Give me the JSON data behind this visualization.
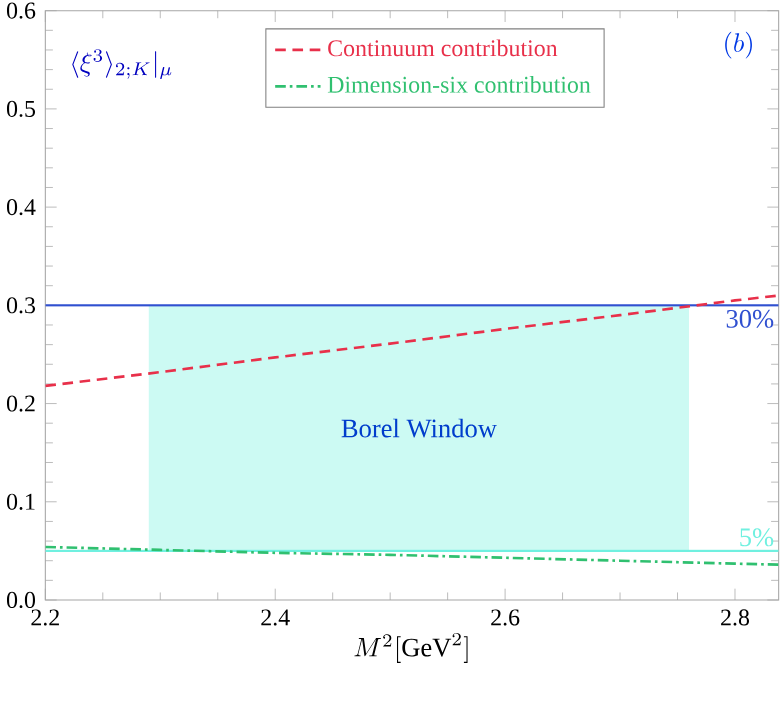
{
  "chart_data": {
    "type": "line",
    "xlabel": "M^2[\\mathrm{GeV}^2]",
    "ylabel": "\\langle\\xi^3\\rangle_{2;K}|_\\mu",
    "annotations": [
      "(b)"
    ],
    "xlim": [
      2.2,
      2.838
    ],
    "ylim": [
      0,
      0.6
    ],
    "xticks": [
      2.2,
      2.4,
      2.6,
      2.8
    ],
    "yticks": [
      {
        "value": 0,
        "label": "0.0"
      },
      0.1,
      0.2,
      0.3,
      0.4,
      0.5,
      0.6
    ],
    "series": [
      {
        "name": "Continuum contribution",
        "color": "#e8304a",
        "line_style": "dashed",
        "x": [
          2.2,
          2.3,
          2.4,
          2.5,
          2.6,
          2.7,
          2.8,
          2.838
        ],
        "values": [
          0.218,
          0.232,
          0.247,
          0.261,
          0.276,
          0.29,
          0.305,
          0.31
        ]
      },
      {
        "name": "Dimension-six contribution",
        "color": "#30c070",
        "line_style": "dashdot",
        "x": [
          2.2,
          2.3,
          2.4,
          2.5,
          2.6,
          2.7,
          2.8,
          2.838
        ],
        "values": [
          0.054,
          0.051,
          0.048,
          0.046,
          0.043,
          0.04,
          0.037,
          0.036
        ]
      }
    ],
    "ref_lines": [
      {
        "axis": "y",
        "value": 0.3,
        "label": "30%",
        "color": "#3050d0"
      },
      {
        "axis": "y",
        "value": 0.05,
        "label": "5%",
        "color": "#70f0e0"
      }
    ],
    "bands": [
      {
        "axis": "x",
        "from": 2.29,
        "to": 2.76,
        "label": "Borel Window",
        "color": "#ccfaf3"
      }
    ],
    "legend": "top",
    "grid": false
  }
}
